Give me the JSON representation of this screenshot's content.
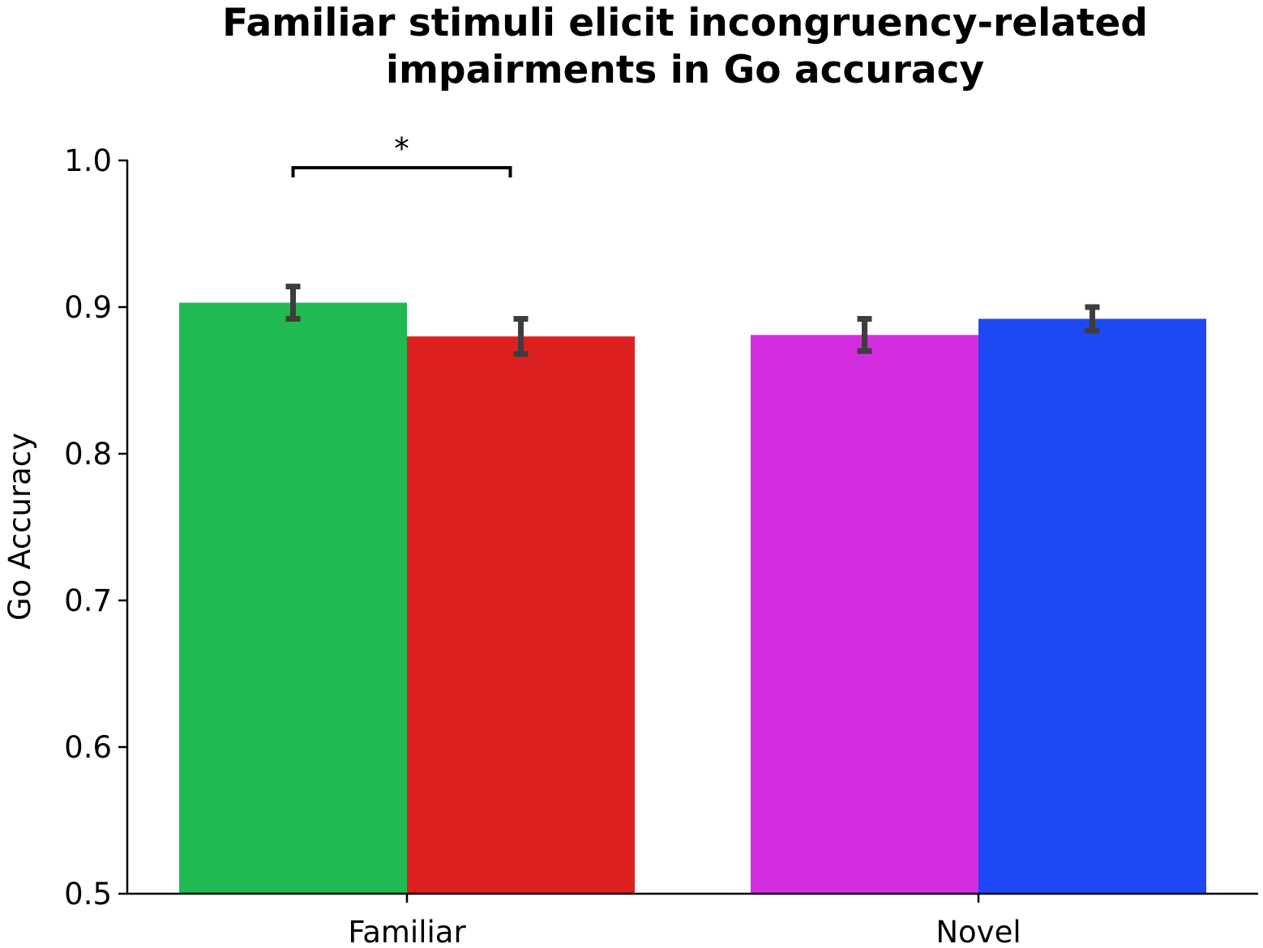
{
  "chart_data": {
    "type": "bar",
    "title": "Familiar stimuli elicit incongruency-related impairments in Go accuracy",
    "title_lines": [
      "Familiar stimuli elicit incongruency-related",
      "impairments in Go accuracy"
    ],
    "xlabel": "",
    "ylabel": "Go Accuracy",
    "ylim": [
      0.5,
      1.0
    ],
    "yticks": [
      0.5,
      0.6,
      0.7,
      0.8,
      0.9,
      1.0
    ],
    "ytick_labels": [
      "0.5",
      "0.6",
      "0.7",
      "0.8",
      "0.9",
      "1.0"
    ],
    "categories": [
      "Familiar",
      "Novel"
    ],
    "groups": [
      {
        "category": "Familiar",
        "bars": [
          {
            "value": 0.903,
            "error": 0.011,
            "color": "#20b952"
          },
          {
            "value": 0.88,
            "error": 0.012,
            "color": "#dc2020"
          }
        ]
      },
      {
        "category": "Novel",
        "bars": [
          {
            "value": 0.881,
            "error": 0.011,
            "color": "#d22ee0"
          },
          {
            "value": 0.892,
            "error": 0.008,
            "color": "#1e48f4"
          }
        ]
      }
    ],
    "error_bar_color": "#3d3d3d",
    "significance": [
      {
        "group": 0,
        "from_bar": 0,
        "to_bar": 1,
        "label": "*"
      }
    ],
    "grid": false,
    "legend": "none"
  }
}
